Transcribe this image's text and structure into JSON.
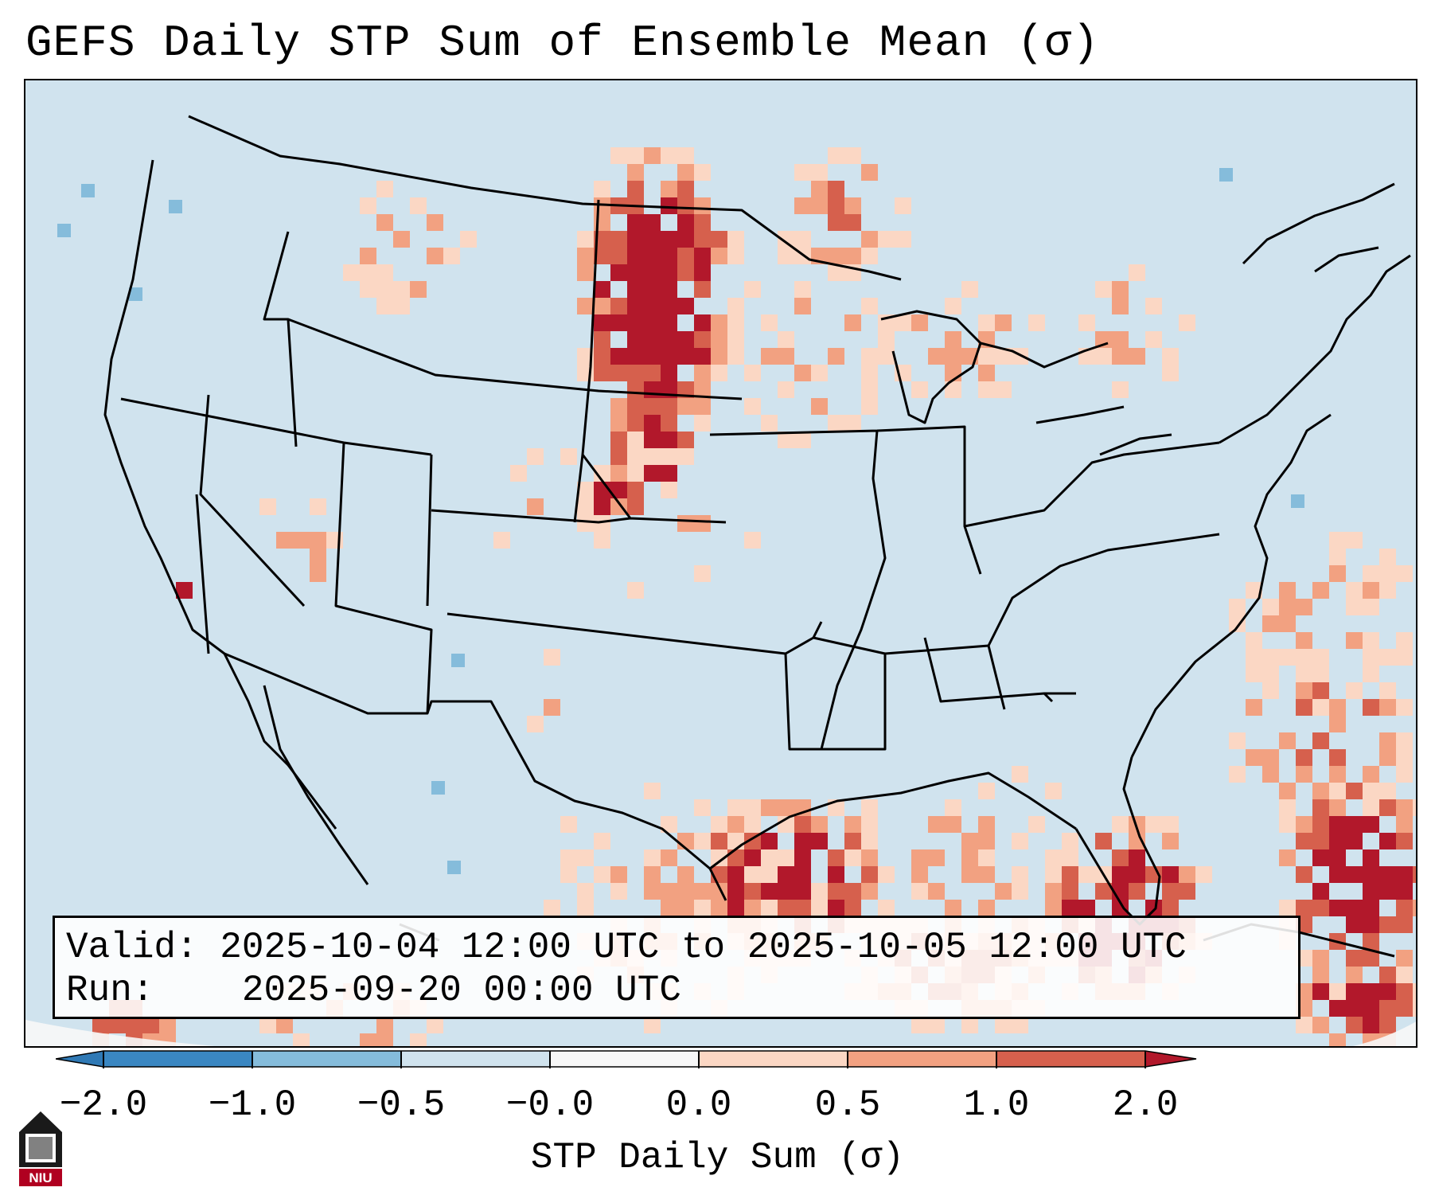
{
  "title": "GEFS Daily STP Sum of Ensemble Mean (σ)",
  "info": {
    "valid_label": "Valid:",
    "valid_value": "2025-10-04 12:00 UTC to 2025-10-05 12:00 UTC",
    "run_label": "Run:",
    "run_value": "2025-09-20 00:00 UTC"
  },
  "colorbar": {
    "label": "STP Daily Sum (σ)",
    "ticks": [
      "−2.0",
      "−1.0",
      "−0.5",
      "−0.0",
      "0.0",
      "0.5",
      "1.0",
      "2.0"
    ],
    "bins": [
      {
        "range": "< -2.0",
        "color": "#2f79b5"
      },
      {
        "range": "-2.0 to -1.0",
        "color": "#3a87c2"
      },
      {
        "range": "-1.0 to -0.5",
        "color": "#85bcdb"
      },
      {
        "range": "-0.5 to -0.0",
        "color": "#d0e3ee"
      },
      {
        "range": "-0.0 to 0.0",
        "color": "#f7f7f7"
      },
      {
        "range": "0.0 to 0.5",
        "color": "#fbd7c4"
      },
      {
        "range": "0.5 to 1.0",
        "color": "#f2a181"
      },
      {
        "range": "1.0 to 2.0",
        "color": "#d6604d"
      },
      {
        "range": "> 2.0",
        "color": "#b2182b"
      }
    ]
  },
  "map": {
    "background_color": "#d0e3ee",
    "border_color": "#000000",
    "hotspots": [
      {
        "region": "Eastern Montana / western North Dakota",
        "category": "> 2.0"
      },
      {
        "region": "Western South Dakota",
        "category": "> 2.0"
      },
      {
        "region": "Northeast Colorado / southwest Nebraska",
        "category": "> 2.0"
      },
      {
        "region": "Southeast Texas coast",
        "category": "> 2.0"
      },
      {
        "region": "Southwest Alberta / Saskatchewan",
        "category": "1.0 to 2.0"
      },
      {
        "region": "Eastern Gulf of Mexico",
        "category": "1.0 to 2.0"
      },
      {
        "region": "Western Atlantic / Bahamas",
        "category": "1.0 to 2.0"
      },
      {
        "region": "Southern California coast",
        "category": "> 2.0"
      }
    ]
  },
  "logo": {
    "text": "NIU",
    "colors": {
      "primary": "#b00020",
      "secondary": "#1a1a1a"
    }
  }
}
